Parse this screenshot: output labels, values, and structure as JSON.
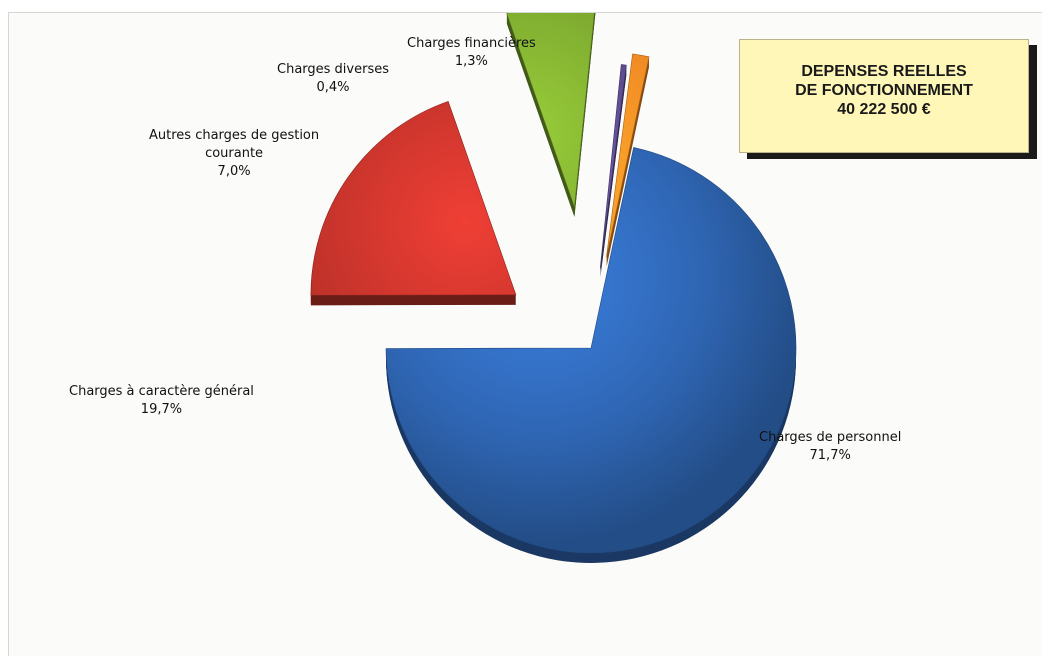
{
  "title_box": {
    "line1": "DEPENSES REELLES",
    "line2": "DE FONCTIONNEMENT",
    "line3": "40 222 500 €"
  },
  "chart_data": {
    "type": "pie",
    "title": "DEPENSES REELLES DE FONCTIONNEMENT 40 222 500 €",
    "total": "40 222 500 €",
    "legend": "none",
    "slices": [
      {
        "label": "Charges de personnel",
        "value": 71.7,
        "value_label": "71,7%",
        "color": "#2f66b4",
        "label_lines": [
          "Charges de personnel"
        ]
      },
      {
        "label": "Charges à caractère général",
        "value": 19.7,
        "value_label": "19,7%",
        "color": "#c0322a",
        "label_lines": [
          "Charges à caractère général"
        ]
      },
      {
        "label": "Autres charges de gestion courante",
        "value": 7.0,
        "value_label": "7,0%",
        "color": "#7aa52e",
        "label_lines": [
          "Autres charges de gestion",
          "courante"
        ]
      },
      {
        "label": "Charges diverses",
        "value": 0.4,
        "value_label": "0,4%",
        "color": "#5a4a8c",
        "label_lines": [
          "Charges diverses"
        ]
      },
      {
        "label": "Charges financières",
        "value": 1.3,
        "value_label": "1,3%",
        "color": "#f08a24",
        "label_lines": [
          "Charges financières"
        ]
      }
    ]
  }
}
